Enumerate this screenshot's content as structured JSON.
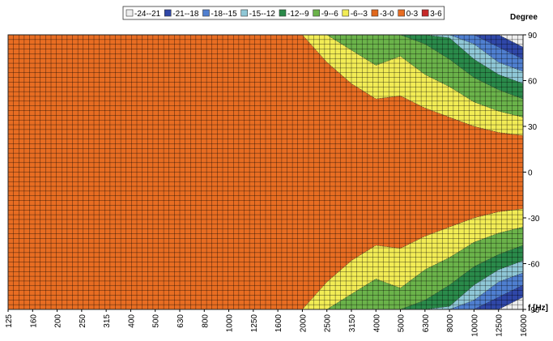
{
  "chart_data": {
    "type": "heatmap",
    "subtype": "filled-contour directivity map",
    "xlabel": "f [Hz]",
    "ylabel": "Degree",
    "x_scale": "log (third-octave bands)",
    "x_ticks": [
      "125",
      "160",
      "200",
      "250",
      "315",
      "400",
      "500",
      "630",
      "800",
      "1000",
      "1250",
      "1600",
      "2000",
      "2500",
      "3150",
      "4000",
      "5000",
      "6300",
      "8000",
      "10000",
      "12500",
      "16000"
    ],
    "y_ticks": [
      90,
      60,
      30,
      0,
      -30,
      -60,
      -90
    ],
    "ylim": [
      -90,
      90
    ],
    "grid": true,
    "legend_position": "top",
    "legend": [
      {
        "label": "-24--21",
        "color": "#eeeeee"
      },
      {
        "label": "-21--18",
        "color": "#2f47a8"
      },
      {
        "label": "-18--15",
        "color": "#4f7fd0"
      },
      {
        "label": "-15--12",
        "color": "#8fc7d6"
      },
      {
        "label": "-12--9",
        "color": "#2a8a4a"
      },
      {
        "label": "-9--6",
        "color": "#6bb34a"
      },
      {
        "label": "-6--3",
        "color": "#f2ec55"
      },
      {
        "label": "-3-0",
        "color": "#e0671c"
      },
      {
        "label": "0-3",
        "color": "#e86d22"
      },
      {
        "label": "3-6",
        "color": "#c62828"
      }
    ],
    "level_boundaries_dB": [
      -3,
      -6,
      -9,
      -12,
      -15,
      -18,
      -21
    ],
    "contour_angles_deg": [
      [
        90,
        90,
        90,
        90,
        90,
        90,
        90,
        90,
        90,
        90,
        90,
        90,
        90,
        72,
        58,
        48,
        50,
        42,
        36,
        30,
        26,
        24
      ],
      [
        90,
        90,
        90,
        90,
        90,
        90,
        90,
        90,
        90,
        90,
        90,
        90,
        90,
        90,
        80,
        70,
        76,
        64,
        56,
        46,
        40,
        36
      ],
      [
        90,
        90,
        90,
        90,
        90,
        90,
        90,
        90,
        90,
        90,
        90,
        90,
        90,
        90,
        90,
        90,
        90,
        84,
        74,
        62,
        54,
        48
      ],
      [
        90,
        90,
        90,
        90,
        90,
        90,
        90,
        90,
        90,
        90,
        90,
        90,
        90,
        90,
        90,
        90,
        90,
        90,
        88,
        74,
        64,
        58
      ],
      [
        90,
        90,
        90,
        90,
        90,
        90,
        90,
        90,
        90,
        90,
        90,
        90,
        90,
        90,
        90,
        90,
        90,
        90,
        90,
        84,
        72,
        66
      ],
      [
        90,
        90,
        90,
        90,
        90,
        90,
        90,
        90,
        90,
        90,
        90,
        90,
        90,
        90,
        90,
        90,
        90,
        90,
        90,
        90,
        82,
        74
      ],
      [
        90,
        90,
        90,
        90,
        90,
        90,
        90,
        90,
        90,
        90,
        90,
        90,
        90,
        90,
        90,
        90,
        90,
        90,
        90,
        90,
        90,
        82
      ]
    ],
    "contour_colors": [
      "#f2ec55",
      "#6bb34a",
      "#2a8a4a",
      "#8fc7d6",
      "#4f7fd0",
      "#2f47a8",
      "#eeeeee"
    ],
    "base_color": "#e86d22"
  }
}
